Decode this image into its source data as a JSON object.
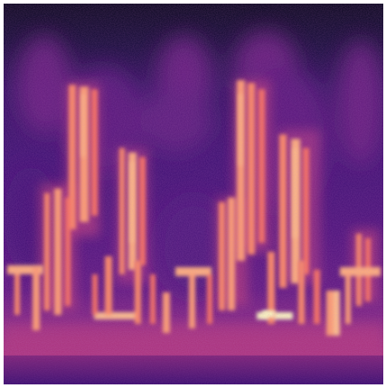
{
  "image": {
    "kind": "spectrogram",
    "colormap": "magma",
    "palette": [
      "#000004",
      "#1d1147",
      "#51127c",
      "#822681",
      "#b73779",
      "#e75263",
      "#fc8961",
      "#fec287",
      "#fcfdbf"
    ],
    "border_color": "#ffffff"
  }
}
